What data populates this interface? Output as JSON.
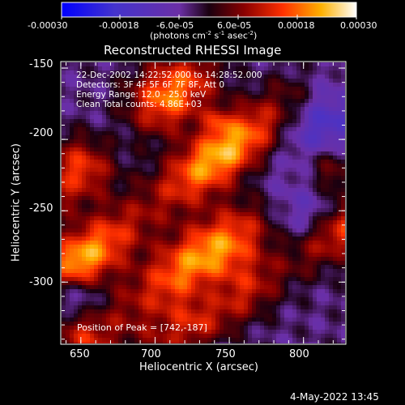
{
  "chart_data": {
    "type": "heatmap",
    "title": "Reconstructed RHESSI Image",
    "xlabel": "Heliocentric X (arcsec)",
    "ylabel": "Heliocentric Y (arcsec)",
    "xlim": [
      637,
      828
    ],
    "ylim": [
      -343,
      -146
    ],
    "xticks": [
      650,
      700,
      750,
      800
    ],
    "yticks": [
      -150,
      -200,
      -250,
      -300
    ],
    "colorbar": {
      "min": -0.0003,
      "max": 0.0003,
      "ticks": [
        "-0.00030",
        "-0.00018",
        "-6.0e-05",
        "6.0e-05",
        "0.00018",
        "0.00030"
      ],
      "label_parts": [
        "(photons cm",
        "-2",
        " s",
        "-1",
        " asec",
        "-2",
        ")"
      ]
    },
    "annotations": [
      "22-Dec-2002 14:22:52.000 to 14:28:52.000",
      "Detectors: 3F 4F 5F 6F 7F 8F, Att 0",
      "Energy Range: 12.0 - 25.0 keV",
      "Clean     Total counts: 4.86E+03"
    ],
    "peak_label": "Position of Peak = [742,-187]",
    "peak": [
      742,
      -187
    ],
    "ridges": [
      {
        "x1": 640,
        "y1": -228,
        "x2": 720,
        "y2": -160,
        "width": 16,
        "amp": 0.00024
      },
      {
        "x1": 648,
        "y1": -286,
        "x2": 790,
        "y2": -175,
        "width": 14,
        "amp": 0.00028
      },
      {
        "x1": 655,
        "y1": -338,
        "x2": 815,
        "y2": -225,
        "width": 16,
        "amp": 0.00027
      },
      {
        "x1": 705,
        "y1": -343,
        "x2": 828,
        "y2": -262,
        "width": 13,
        "amp": 0.00022
      }
    ],
    "lows": [
      {
        "x": 665,
        "y": -205,
        "r": 16,
        "amp": -0.00012
      },
      {
        "x": 800,
        "y": -245,
        "r": 22,
        "amp": -0.00016
      },
      {
        "x": 740,
        "y": -312,
        "r": 14,
        "amp": -0.00012
      },
      {
        "x": 812,
        "y": -190,
        "r": 18,
        "amp": -0.00014
      },
      {
        "x": 650,
        "y": -310,
        "r": 12,
        "amp": -0.0001
      }
    ]
  },
  "timestamp": "4-May-2022 13:45"
}
